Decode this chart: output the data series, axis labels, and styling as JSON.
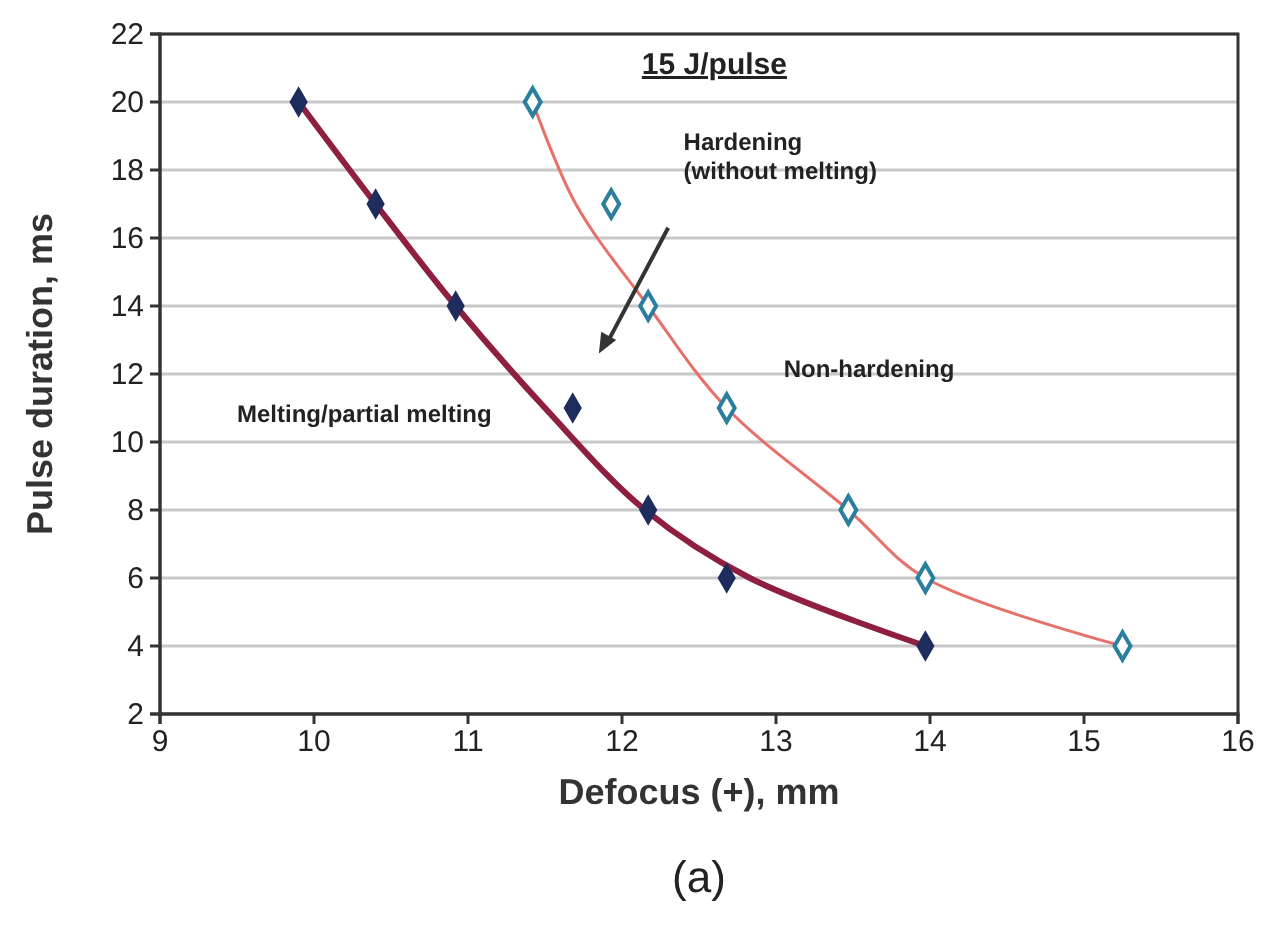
{
  "chart_data": {
    "type": "scatter",
    "title": "15 J/pulse",
    "xlabel": "Defocus (+), mm",
    "ylabel": "Pulse duration, ms",
    "annotations": [
      "Hardening\n(without melting)",
      "Non-hardening",
      "Melting/partial melting",
      "(a)"
    ],
    "xlim": [
      9,
      16
    ],
    "xticks": [
      9,
      10,
      11,
      12,
      13,
      14,
      15,
      16
    ],
    "ylim": [
      2,
      22
    ],
    "yticks": [
      2,
      4,
      6,
      8,
      10,
      12,
      14,
      16,
      18,
      20,
      22
    ],
    "grid": "y",
    "series": [
      {
        "type": "line",
        "color": "#8e1f3f",
        "x": [
          9.9,
          10.4,
          10.92,
          11.5,
          12.15,
          12.83,
          13.97
        ],
        "values": [
          20,
          17,
          14,
          11,
          8,
          6,
          4
        ]
      },
      {
        "type": "line",
        "color": "#e8706a",
        "x": [
          11.42,
          11.7,
          12.17,
          12.68,
          13.47,
          13.97,
          15.25
        ],
        "values": [
          20,
          17,
          14,
          11,
          8,
          6,
          4
        ]
      },
      {
        "color": "#1f2c5e",
        "marker": "diamond",
        "x": [
          9.9,
          10.4,
          10.92,
          11.68,
          12.17,
          12.68,
          13.97
        ],
        "values": [
          20,
          17,
          14,
          11,
          8,
          6,
          4
        ]
      },
      {
        "color": "#2a7f9e",
        "marker": "diamond",
        "x": [
          11.42,
          11.93,
          12.17,
          12.68,
          13.47,
          13.97,
          15.25
        ],
        "values": [
          20,
          17,
          14,
          11,
          8,
          6,
          4
        ]
      }
    ]
  }
}
